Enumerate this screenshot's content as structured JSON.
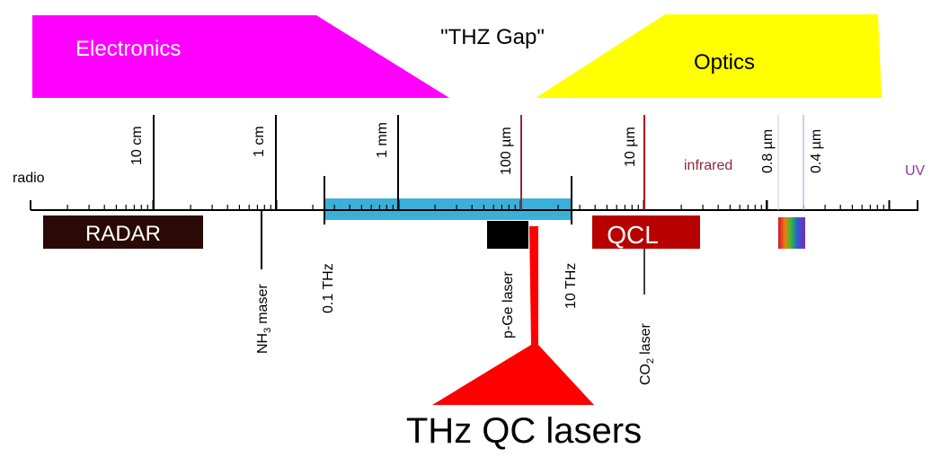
{
  "banners": {
    "electronics": {
      "label": "Electronics",
      "color": "#ff00ff"
    },
    "gap": {
      "label": "\"THZ Gap\""
    },
    "optics": {
      "label": "Optics",
      "color": "#ffff00"
    }
  },
  "axis": {
    "radio": "radio",
    "uv": "UV",
    "infrared": "infrared",
    "wavelengths": {
      "cm10": "10 cm",
      "cm1": "1 cm",
      "mm1": "1 mm",
      "um100": "100 µm",
      "um10": "10 µm",
      "um08": "0.8 µm",
      "um04": "0.4 µm"
    },
    "frequencies": {
      "thz01": "0.1 THz",
      "thz10": "10 THz"
    }
  },
  "sources": {
    "radar": {
      "label": "RADAR",
      "color": "#2a0a06"
    },
    "qcl": {
      "label": "QCL",
      "color": "#b80000"
    },
    "thz_band": {
      "color": "#3ab0d8"
    },
    "pge": {
      "label": "p-Ge laser",
      "color": "#000000"
    },
    "nh3": {
      "label_nh": "NH",
      "label_sub": "3",
      "label_rest": "maser"
    },
    "co2": {
      "label_co": "CO",
      "label_sub": "2",
      "label_rest": "laser"
    },
    "thzqc": {
      "label": "THz QC lasers",
      "color": "#ff0000"
    }
  },
  "colors": {
    "wine": "#8a2a3a",
    "purple": "#8a3a9a",
    "visible_a": "#c9c3e6",
    "visible_b": "#9aa0d8"
  }
}
